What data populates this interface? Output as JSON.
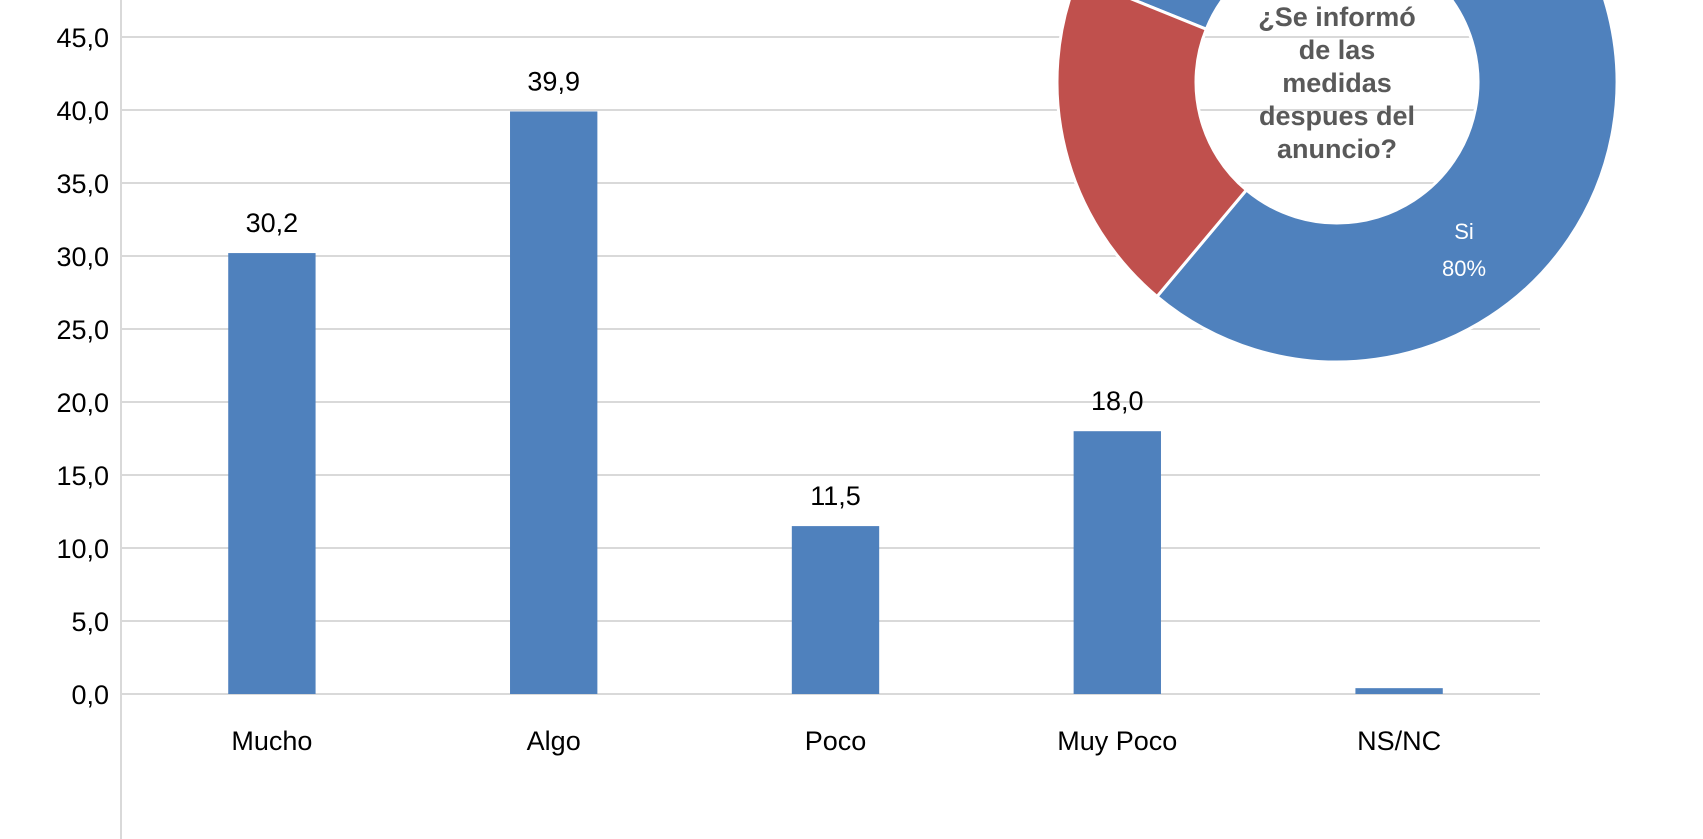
{
  "chart_data": [
    {
      "type": "bar",
      "categories": [
        "Mucho",
        "Algo",
        "Poco",
        "Muy Poco",
        "NS/NC"
      ],
      "values": [
        30.2,
        39.9,
        11.5,
        18.0,
        0.4
      ],
      "value_labels": [
        "30,2",
        "39,9",
        "11,5",
        "18,0",
        ""
      ],
      "ylim": [
        0,
        45
      ],
      "yticks": [
        0,
        5,
        10,
        15,
        20,
        25,
        30,
        35,
        40,
        45
      ],
      "ytick_labels": [
        "0,0",
        "5,0",
        "10,0",
        "15,0",
        "20,0",
        "25,0",
        "30,0",
        "35,0",
        "40,0",
        "45,0"
      ],
      "grid": true,
      "bar_color": "#4f81bd"
    },
    {
      "type": "pie",
      "style": "donut",
      "title_lines": [
        "¿Se informó",
        "de las",
        "medidas",
        "despues del",
        "anuncio?"
      ],
      "slices": [
        {
          "name": "Si",
          "value": 80,
          "label": "80%",
          "color": "#4f81bd"
        },
        {
          "name": "",
          "value": 20,
          "label": "",
          "color": "#c0504d"
        }
      ]
    }
  ]
}
